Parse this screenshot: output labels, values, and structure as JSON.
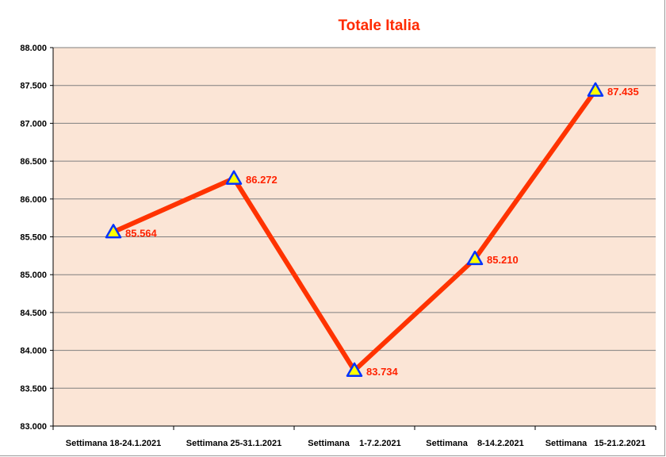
{
  "chart_data": {
    "type": "line",
    "title": "Totale Italia",
    "xlabel": "",
    "ylabel": "",
    "categories": [
      "Settimana 18-24.1.2021",
      "Settimana 25-31.1.2021",
      "Settimana    1-7.2.2021",
      "Settimana    8-14.2.2021",
      "Settimana   15-21.2.2021"
    ],
    "series": [
      {
        "values": [
          85564,
          86272,
          83734,
          85210,
          87435
        ]
      }
    ],
    "data_labels": [
      "85.564",
      "86.272",
      "83.734",
      "85.210",
      "87.435"
    ],
    "ylim": [
      83000,
      88000
    ],
    "yticks": [
      83000,
      83500,
      84000,
      84500,
      85000,
      85500,
      86000,
      86500,
      87000,
      87500,
      88000
    ],
    "ytick_labels": [
      "83.000",
      "83.500",
      "84.000",
      "84.500",
      "85.000",
      "85.500",
      "86.000",
      "86.500",
      "87.000",
      "87.500",
      "88.000"
    ],
    "grid": true,
    "legend": "none",
    "marker": "triangle"
  },
  "colors": {
    "title": "#ff2a00",
    "line": "#ff3300",
    "data_label": "#ff2200",
    "plot_background": "#fbe5d6",
    "gridline": "#7f7f7f",
    "marker_fill": "#ffff00",
    "marker_stroke": "#0033ff",
    "axis": "#000000"
  }
}
